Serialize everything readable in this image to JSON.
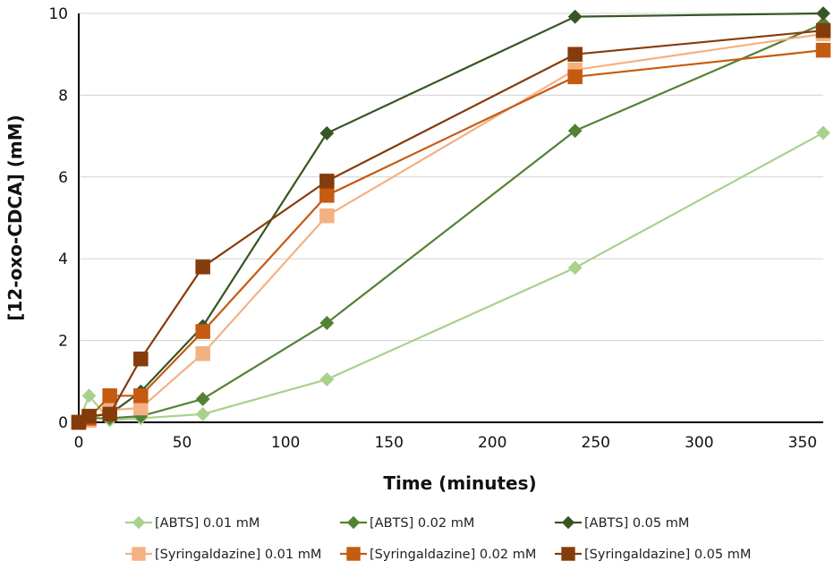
{
  "chart_data": {
    "type": "line",
    "xlabel": "Time (minutes)",
    "ylabel": "[12-oxo-CDCA] (mM)",
    "xlim": [
      0,
      360
    ],
    "ylim": [
      0,
      10
    ],
    "xticks": [
      0,
      50,
      100,
      150,
      200,
      250,
      300,
      350
    ],
    "yticks": [
      0,
      2,
      4,
      6,
      8,
      10
    ],
    "grid": "horizontal",
    "legend_position": "bottom",
    "series": [
      {
        "name": "[ABTS] 0.01 mM",
        "marker": "diamond",
        "color": "#a9d18e",
        "x": [
          0,
          5,
          15,
          30,
          60,
          120,
          240,
          360
        ],
        "y": [
          0,
          0.65,
          0.05,
          0.1,
          0.2,
          1.05,
          3.78,
          7.08
        ]
      },
      {
        "name": "[ABTS] 0.02 mM",
        "marker": "diamond",
        "color": "#548235",
        "x": [
          0,
          5,
          15,
          30,
          60,
          120,
          240,
          360
        ],
        "y": [
          0,
          0.1,
          0.1,
          0.15,
          0.57,
          2.43,
          7.13,
          9.75
        ]
      },
      {
        "name": "[ABTS] 0.05 mM",
        "marker": "diamond",
        "color": "#375623",
        "x": [
          0,
          5,
          15,
          30,
          60,
          120,
          240,
          360
        ],
        "y": [
          0,
          0.15,
          0.2,
          0.75,
          2.35,
          7.07,
          9.92,
          10.0
        ]
      },
      {
        "name": "[Syringaldazine] 0.01 mM",
        "marker": "square",
        "color": "#f4b183",
        "x": [
          0,
          5,
          15,
          30,
          60,
          120,
          240,
          360
        ],
        "y": [
          0,
          0.05,
          0.3,
          0.35,
          1.68,
          5.05,
          8.62,
          9.5
        ]
      },
      {
        "name": "[Syringaldazine] 0.02 mM",
        "marker": "square",
        "color": "#c55a11",
        "x": [
          0,
          5,
          15,
          30,
          60,
          120,
          240,
          360
        ],
        "y": [
          0,
          0.1,
          0.65,
          0.65,
          2.22,
          5.55,
          8.45,
          9.1
        ]
      },
      {
        "name": "[Syringaldazine] 0.05 mM",
        "marker": "square",
        "color": "#843c0c",
        "x": [
          0,
          5,
          15,
          30,
          60,
          120,
          240,
          360
        ],
        "y": [
          0,
          0.15,
          0.2,
          1.55,
          3.8,
          5.9,
          9.0,
          9.58
        ]
      }
    ]
  }
}
